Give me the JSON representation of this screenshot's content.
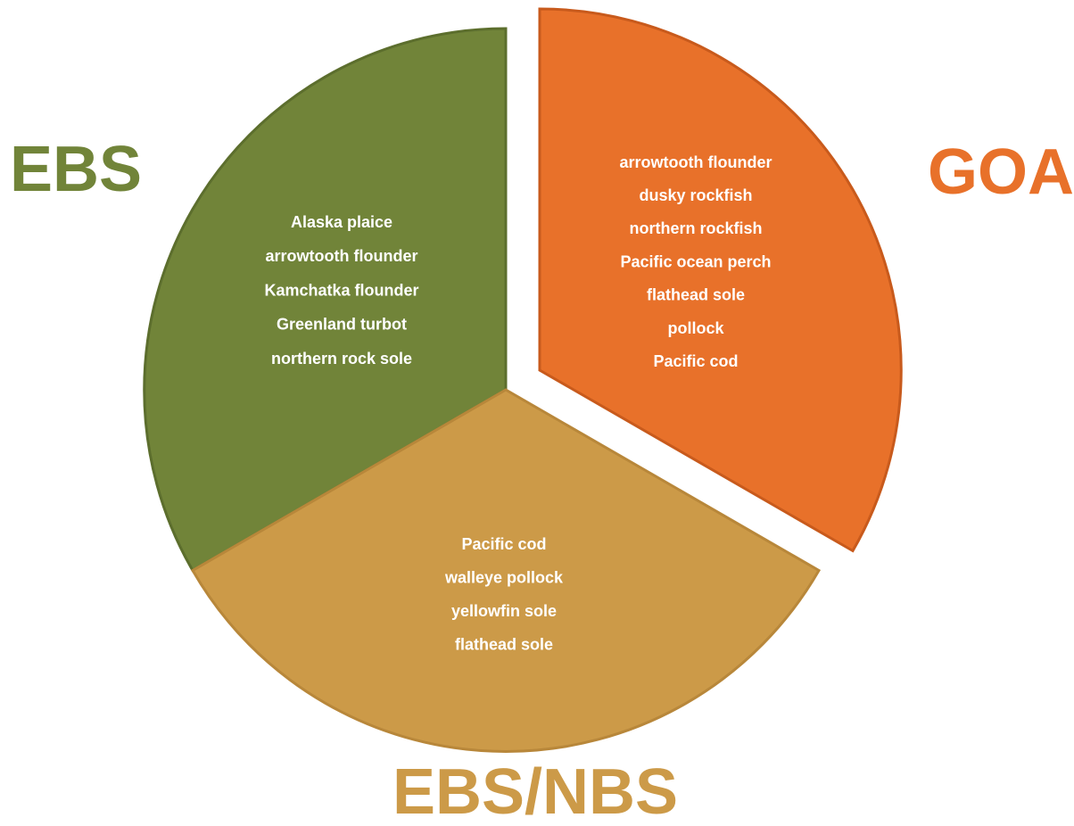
{
  "segments": [
    {
      "label": "EBS",
      "species": [
        "Alaska plaice",
        "arrowtooth flounder",
        "Kamchatka flounder",
        "Greenland turbot",
        "northern rock sole"
      ]
    },
    {
      "label": "GOA",
      "species": [
        "arrowtooth flounder",
        "dusky rockfish",
        "northern rockfish",
        "Pacific ocean perch",
        "flathead sole",
        "pollock",
        "Pacific cod"
      ]
    },
    {
      "label": "EBS/NBS",
      "species": [
        "Pacific cod",
        "walleye pollock",
        "yellowfin sole",
        "flathead sole"
      ]
    }
  ]
}
